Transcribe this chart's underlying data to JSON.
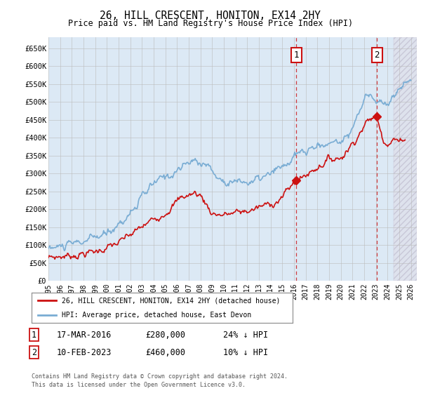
{
  "title": "26, HILL CRESCENT, HONITON, EX14 2HY",
  "subtitle": "Price paid vs. HM Land Registry's House Price Index (HPI)",
  "ylabel_ticks": [
    "£0",
    "£50K",
    "£100K",
    "£150K",
    "£200K",
    "£250K",
    "£300K",
    "£350K",
    "£400K",
    "£450K",
    "£500K",
    "£550K",
    "£600K",
    "£650K"
  ],
  "ytick_values": [
    0,
    50000,
    100000,
    150000,
    200000,
    250000,
    300000,
    350000,
    400000,
    450000,
    500000,
    550000,
    600000,
    650000
  ],
  "ylim": [
    0,
    680000
  ],
  "xlim_start": 1995.0,
  "xlim_end": 2026.5,
  "hpi_color": "#7aadd4",
  "price_color": "#cc1111",
  "marker1_date": 2016.2,
  "marker1_price": 280000,
  "marker1_label": "1",
  "marker2_date": 2023.1,
  "marker2_price": 460000,
  "marker2_label": "2",
  "legend_line1": "26, HILL CRESCENT, HONITON, EX14 2HY (detached house)",
  "legend_line2": "HPI: Average price, detached house, East Devon",
  "table_row1": [
    "1",
    "17-MAR-2016",
    "£280,000",
    "24% ↓ HPI"
  ],
  "table_row2": [
    "2",
    "10-FEB-2023",
    "£460,000",
    "10% ↓ HPI"
  ],
  "footnote": "Contains HM Land Registry data © Crown copyright and database right 2024.\nThis data is licensed under the Open Government Licence v3.0.",
  "background_chart": "#dce9f5",
  "grid_color": "#bbbbbb",
  "future_start": 2024.5
}
